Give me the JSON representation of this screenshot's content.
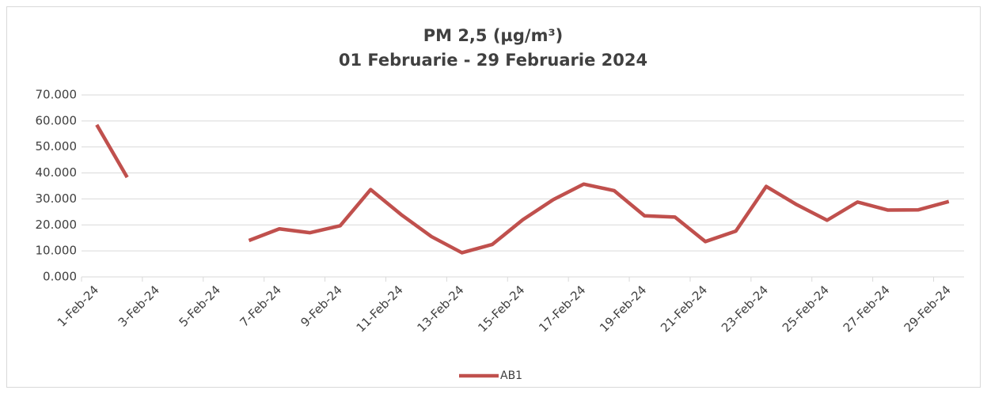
{
  "chart_data": {
    "type": "line",
    "title": "PM 2,5 (µg/m³)",
    "subtitle": "01 Februarie - 29 Februarie 2024",
    "categories": [
      "1-Feb-24",
      null,
      "3-Feb-24",
      null,
      "5-Feb-24",
      null,
      "7-Feb-24",
      null,
      "9-Feb-24",
      null,
      "11-Feb-24",
      null,
      "13-Feb-24",
      null,
      "15-Feb-24",
      null,
      "17-Feb-24",
      null,
      "19-Feb-24",
      null,
      "21-Feb-24",
      null,
      "23-Feb-24",
      null,
      "25-Feb-24",
      null,
      "27-Feb-24",
      null,
      "29-Feb-24"
    ],
    "series": [
      {
        "name": "AB1",
        "color": "#c0504d",
        "values": [
          58.5,
          38.3,
          null,
          null,
          null,
          14.0,
          18.5,
          17.0,
          19.7,
          33.6,
          24.0,
          15.5,
          9.3,
          12.5,
          22.0,
          29.7,
          35.7,
          33.2,
          23.5,
          23.0,
          13.6,
          17.6,
          34.8,
          27.8,
          21.8,
          28.8,
          25.7,
          25.8,
          29.0
        ]
      }
    ],
    "ylim": [
      0,
      70
    ],
    "yticks": [
      {
        "value": 0,
        "label": "0.000"
      },
      {
        "value": 10,
        "label": "10.000"
      },
      {
        "value": 20,
        "label": "20.000"
      },
      {
        "value": 30,
        "label": "30.000"
      },
      {
        "value": 40,
        "label": "40.000"
      },
      {
        "value": 50,
        "label": "50.000"
      },
      {
        "value": 60,
        "label": "60.000"
      },
      {
        "value": 70,
        "label": "70.000"
      }
    ],
    "grid": true,
    "legend": "bottom"
  }
}
